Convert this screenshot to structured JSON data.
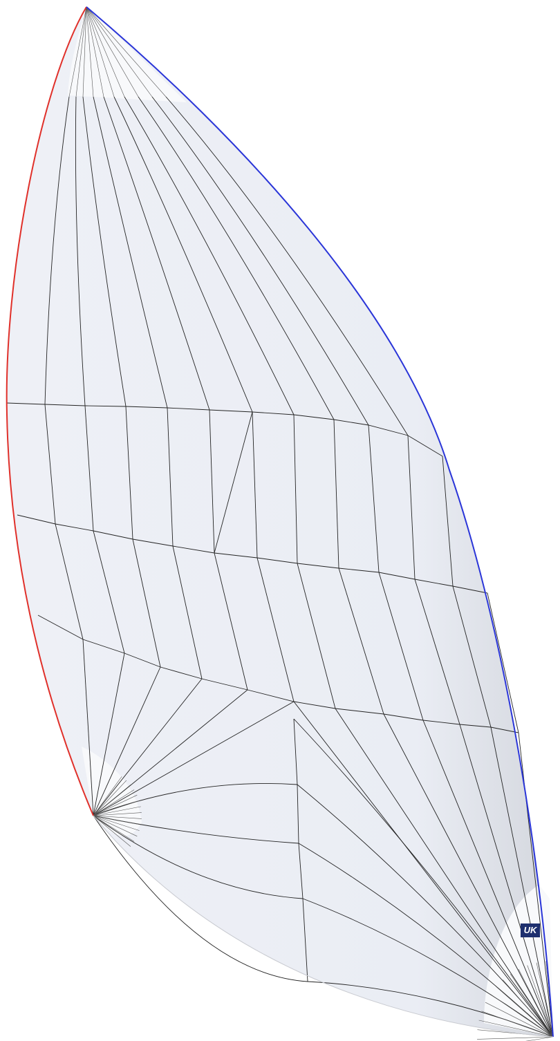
{
  "logo": {
    "text": "UK"
  }
}
